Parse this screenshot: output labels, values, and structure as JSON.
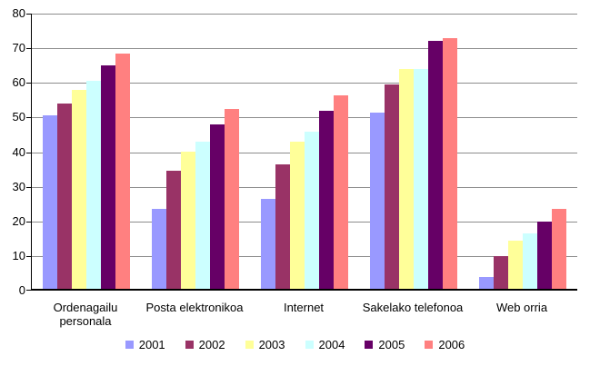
{
  "chart_data": {
    "type": "bar",
    "title": "",
    "categories": [
      "Ordenagailu personala",
      "Posta elektronikoa",
      "Internet",
      "Sakelako telefonoa",
      "Web orria"
    ],
    "series": [
      {
        "name": "2001",
        "color": "#9999FF",
        "values": [
          50.5,
          23.5,
          26.5,
          51.5,
          4
        ]
      },
      {
        "name": "2002",
        "color": "#993366",
        "values": [
          54,
          34.5,
          36.5,
          59.5,
          10
        ]
      },
      {
        "name": "2003",
        "color": "#FFFF99",
        "values": [
          58,
          40,
          43,
          64,
          14.5
        ]
      },
      {
        "name": "2004",
        "color": "#CCFFFF",
        "values": [
          60.5,
          43,
          46,
          64,
          16.5
        ]
      },
      {
        "name": "2005",
        "color": "#660066",
        "values": [
          65,
          48,
          52,
          72,
          20
        ]
      },
      {
        "name": "2006",
        "color": "#FF8080",
        "values": [
          68.5,
          52.5,
          56.5,
          73,
          23.5
        ]
      }
    ],
    "xlabel": "",
    "ylabel": "",
    "ylim": [
      0,
      80
    ],
    "yticks": [
      0,
      10,
      20,
      30,
      40,
      50,
      60,
      70,
      80
    ],
    "grid": true,
    "legend_position": "bottom"
  },
  "style": {
    "gridline_color": "#8c8c8c",
    "axis_color": "#000000",
    "background_color": "#FFFFFF",
    "text_color": "#000000"
  }
}
